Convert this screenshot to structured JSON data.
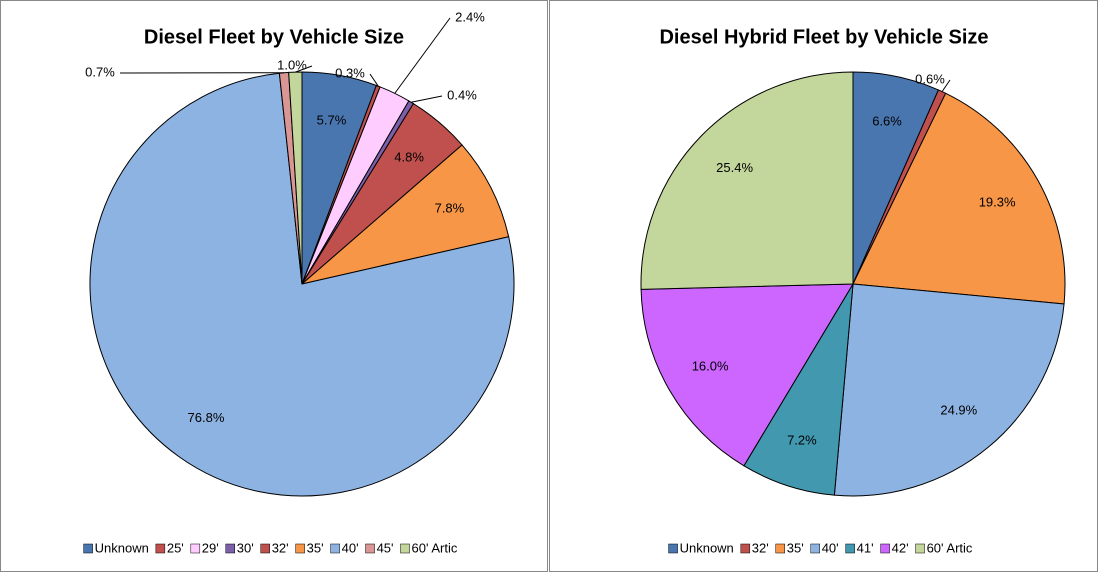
{
  "chart_data": [
    {
      "type": "pie",
      "title": "Diesel Fleet by Vehicle Size",
      "categories": [
        "Unknown",
        "25'",
        "29'",
        "30'",
        "32'",
        "35'",
        "40'",
        "45'",
        "60' Artic"
      ],
      "values": [
        5.7,
        0.3,
        2.4,
        0.4,
        4.8,
        7.8,
        76.8,
        0.7,
        1.0
      ],
      "value_labels": [
        "5.7%",
        "0.3%",
        "2.4%",
        "0.4%",
        "4.8%",
        "7.8%",
        "76.8%",
        "0.7%",
        "1.0%"
      ],
      "colors": [
        "#4a76b0",
        "#c0504d",
        "#ffccff",
        "#7b5fa8",
        "#c0504d",
        "#f79646",
        "#8db3e2",
        "#d99694",
        "#c3d69b"
      ],
      "legend": "bottom"
    },
    {
      "type": "pie",
      "title": "Diesel Hybrid Fleet by Vehicle Size",
      "categories": [
        "Unknown",
        "32'",
        "35'",
        "40'",
        "41'",
        "42'",
        "60' Artic"
      ],
      "values": [
        6.6,
        0.6,
        19.3,
        24.9,
        7.2,
        16.0,
        25.4
      ],
      "value_labels": [
        "6.6%",
        "0.6%",
        "19.3%",
        "24.9%",
        "7.2%",
        "16.0%",
        "25.4%"
      ],
      "colors": [
        "#4a76b0",
        "#c0504d",
        "#f79646",
        "#8db3e2",
        "#4198af",
        "#cc66ff",
        "#c3d69b"
      ],
      "legend": "bottom"
    }
  ]
}
